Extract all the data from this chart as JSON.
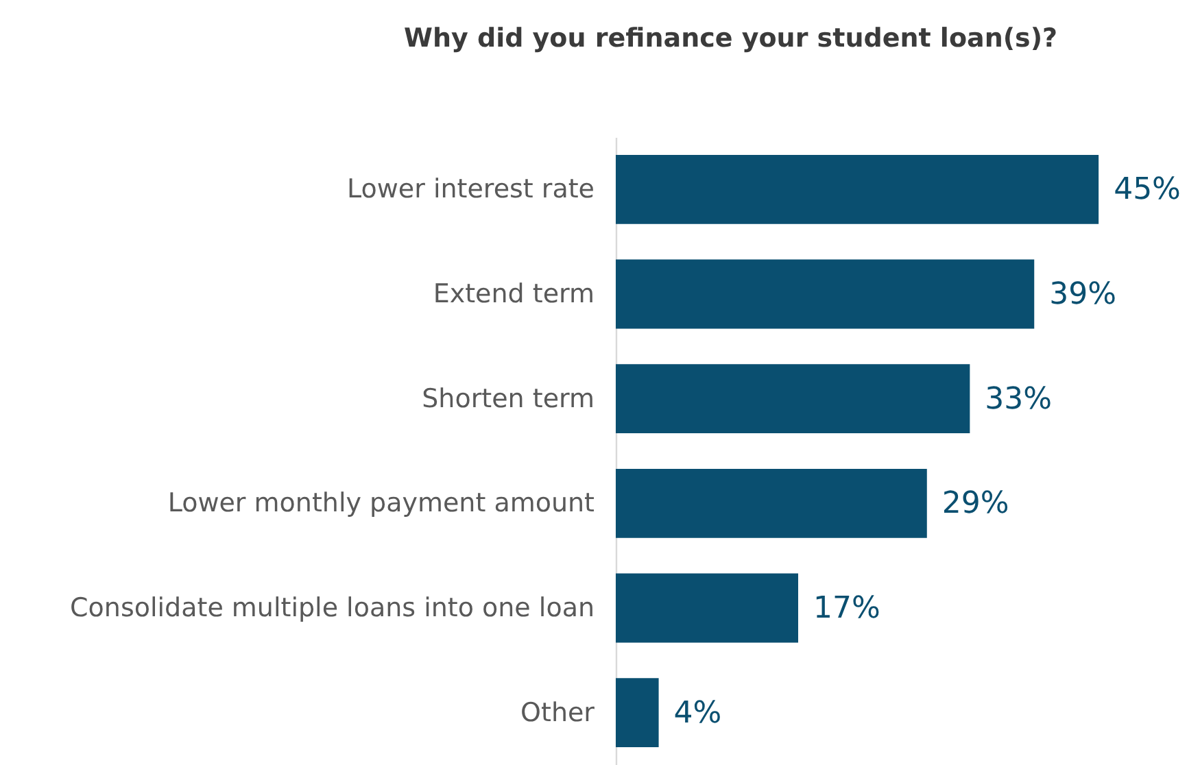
{
  "chart_data": {
    "type": "bar",
    "orientation": "horizontal",
    "title": "Why did you refinance your student loan(s)?",
    "categories": [
      "Lower interest rate",
      "Extend term",
      "Shorten term",
      "Lower monthly payment amount",
      "Consolidate multiple loans into one loan",
      "Other"
    ],
    "values": [
      45,
      39,
      33,
      29,
      17,
      4
    ],
    "value_labels": [
      "45%",
      "39%",
      "33%",
      "29%",
      "17%",
      "4%"
    ],
    "color": "#0a4f70"
  }
}
